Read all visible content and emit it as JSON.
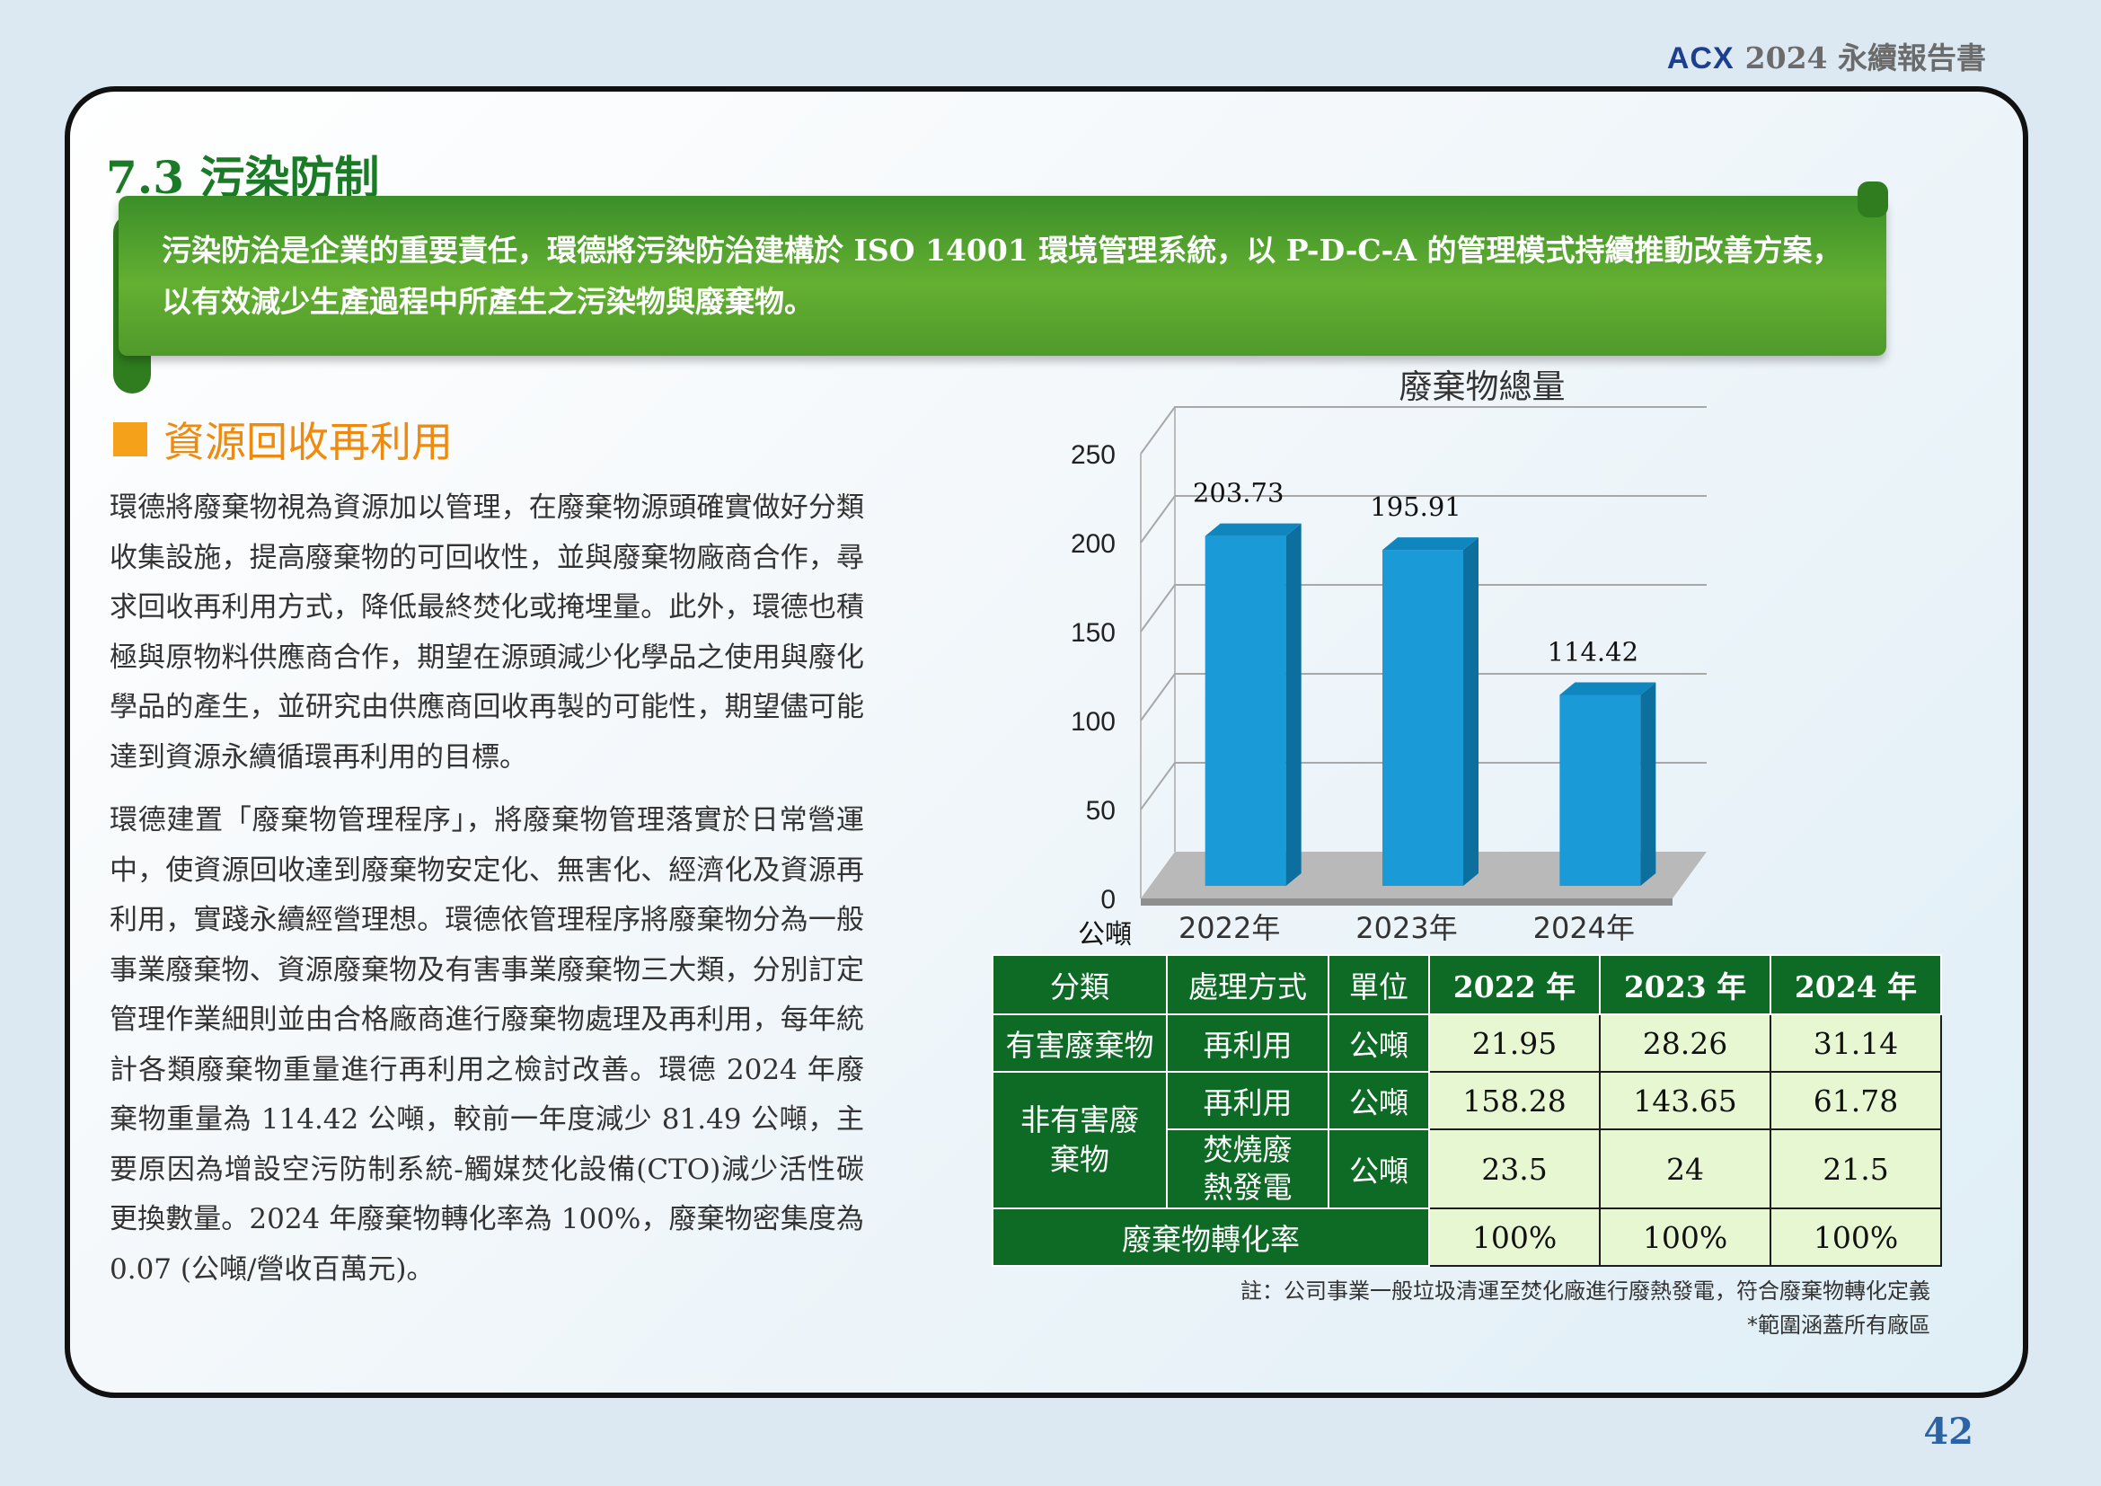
{
  "header": {
    "logo": "ACX",
    "report_title": "2024 永續報告書"
  },
  "section": {
    "title": "7.3 污染防制"
  },
  "banner": {
    "text": "污染防治是企業的重要責任，環德將污染防治建構於 ISO 14001 環境管理系統，以 P-D-C-A 的管理模式持續推動改善方案，以有效減少生產過程中所產生之污染物與廢棄物。"
  },
  "subsection": {
    "title": "資源回收再利用"
  },
  "paragraphs": [
    "環德將廢棄物視為資源加以管理，在廢棄物源頭確實做好分類收集設施，提高廢棄物的可回收性，並與廢棄物廠商合作，尋求回收再利用方式，降低最終焚化或掩埋量。此外，環德也積極與原物料供應商合作，期望在源頭減少化學品之使用與廢化學品的產生，並研究由供應商回收再製的可能性，期望儘可能達到資源永續循環再利用的目標。",
    "環德建置「廢棄物管理程序」，將廢棄物管理落實於日常營運中，使資源回收達到廢棄物安定化、無害化、經濟化及資源再利用，實踐永續經營理想。環德依管理程序將廢棄物分為一般事業廢棄物、資源廢棄物及有害事業廢棄物三大類，分別訂定管理作業細則並由合格廠商進行廢棄物處理及再利用，每年統計各類廢棄物重量進行再利用之檢討改善。環德 2024 年廢棄物重量為 114.42 公噸，較前一年度減少 81.49 公噸，主要原因為增設空污防制系統-觸媒焚化設備(CTO)減少活性碳更換數量。2024 年廢棄物轉化率為 100%，廢棄物密集度為 0.07 (公噸/營收百萬元)。"
  ],
  "chart_data": {
    "type": "bar",
    "title": "廢棄物總量",
    "categories": [
      "2022年",
      "2023年",
      "2024年"
    ],
    "values": [
      203.73,
      195.91,
      114.42
    ],
    "value_labels": [
      "203.73",
      "195.91",
      "114.42"
    ],
    "ylabel": "公噸",
    "ylim": [
      0,
      250
    ],
    "yticks": [
      0,
      50,
      100,
      150,
      200,
      250
    ],
    "grid": true,
    "bar_color": "#1a9ad6"
  },
  "table": {
    "headers": [
      "分類",
      "處理方式",
      "單位",
      "2022 年",
      "2023 年",
      "2024 年"
    ],
    "rows": {
      "hazardous": {
        "category": "有害廢棄物",
        "method": "再利用",
        "unit": "公噸",
        "values": [
          "21.95",
          "28.26",
          "31.14"
        ]
      },
      "nonhaz_reuse": {
        "category": "非有害廢棄物",
        "method": "再利用",
        "unit": "公噸",
        "values": [
          "158.28",
          "143.65",
          "61.78"
        ]
      },
      "nonhaz_incin": {
        "method": "焚燒廢熱發電",
        "unit": "公噸",
        "values": [
          "23.5",
          "24",
          "21.5"
        ]
      },
      "conversion": {
        "label": "廢棄物轉化率",
        "values": [
          "100%",
          "100%",
          "100%"
        ]
      }
    }
  },
  "notes": {
    "note1": "註：公司事業一般垃圾清運至焚化廠進行廢熱發電，符合廢棄物轉化定義",
    "note2": "*範圍涵蓋所有廠區"
  },
  "page": {
    "number": "42"
  }
}
